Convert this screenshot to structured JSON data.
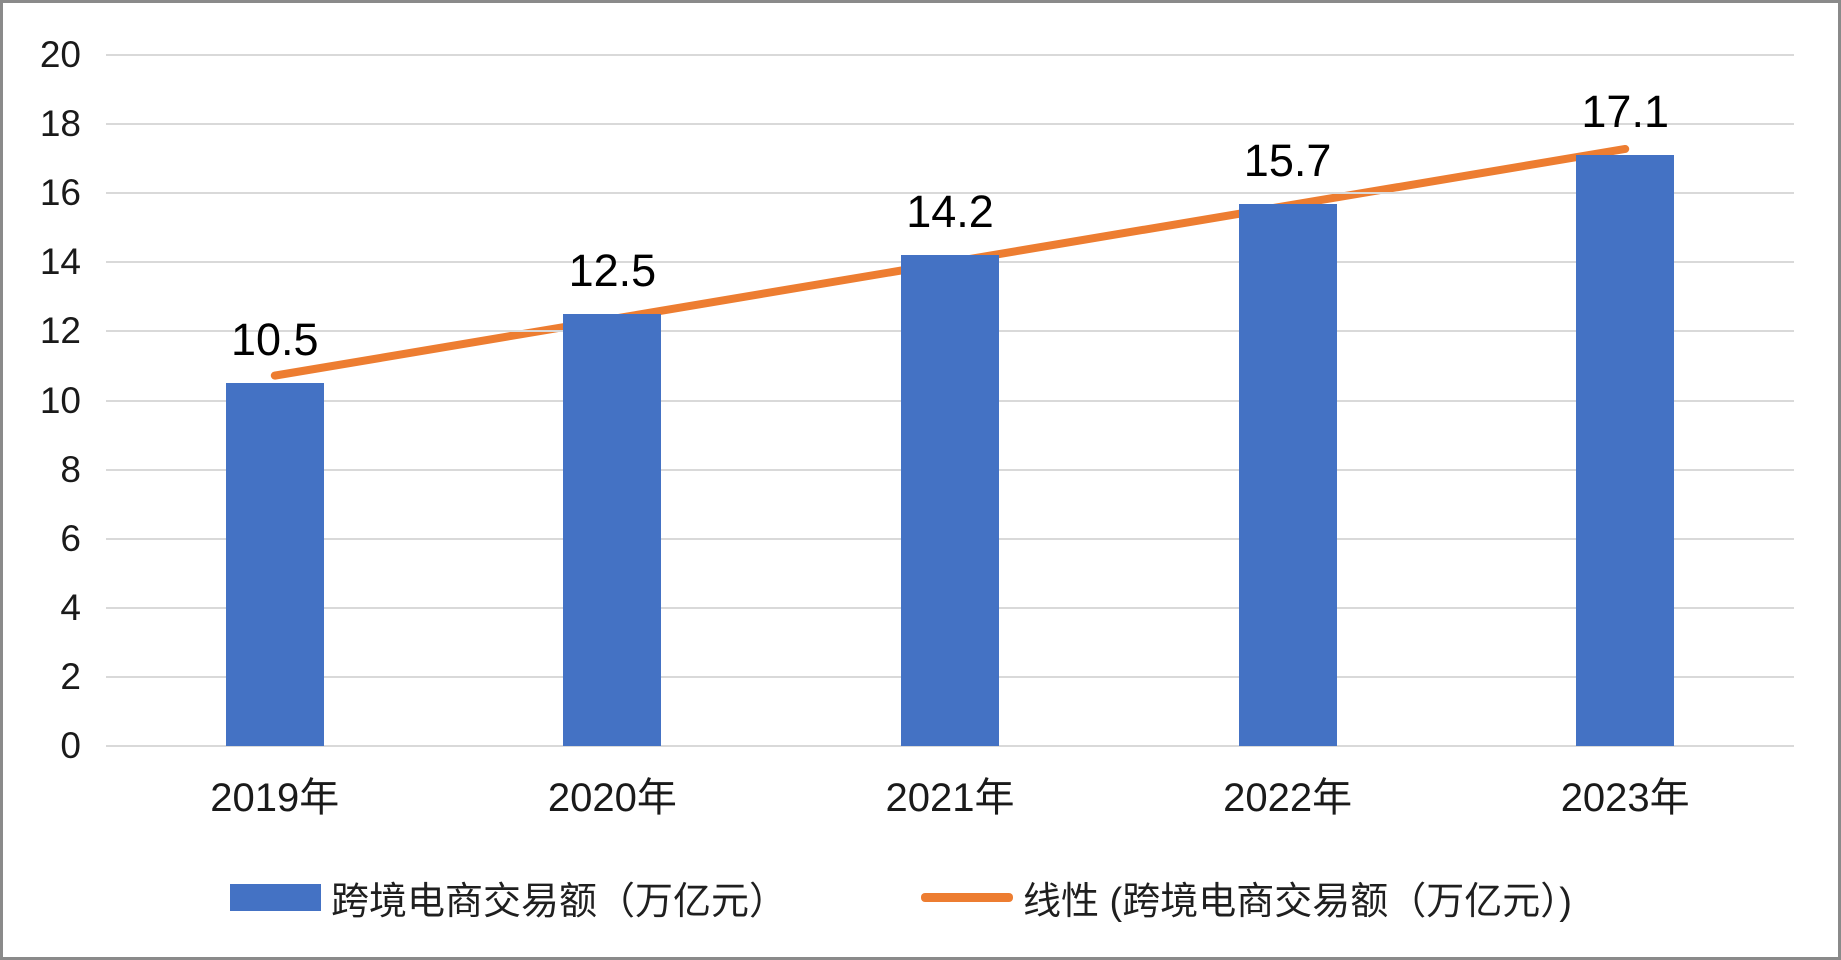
{
  "chart_data": {
    "type": "bar",
    "categories": [
      "2019年",
      "2020年",
      "2021年",
      "2022年",
      "2023年"
    ],
    "series": [
      {
        "name": "跨境电商交易额（万亿元）",
        "kind": "bar",
        "values": [
          10.5,
          12.5,
          14.2,
          15.7,
          17.1
        ],
        "color": "#4472C4"
      },
      {
        "name": "线性 (跨境电商交易额（万亿元）)",
        "kind": "linear-trendline",
        "color": "#ED7D31"
      }
    ],
    "value_labels": [
      "10.5",
      "12.5",
      "14.2",
      "15.7",
      "17.1"
    ],
    "title": "",
    "xlabel": "",
    "ylabel": "",
    "ylim": [
      0,
      20
    ],
    "ytick_step": 2,
    "yticks": [
      "0",
      "2",
      "4",
      "6",
      "8",
      "10",
      "12",
      "14",
      "16",
      "18",
      "20"
    ],
    "grid": true,
    "legend_position": "bottom",
    "colors": {
      "bar_fill": "#4472C4",
      "trendline": "#ED7D31",
      "gridline": "#D9D9D9",
      "axis_text": "#1a1a1a",
      "value_label_text": "#000000",
      "background": "#FFFFFF",
      "frame_border": "#8a8a8a"
    }
  }
}
